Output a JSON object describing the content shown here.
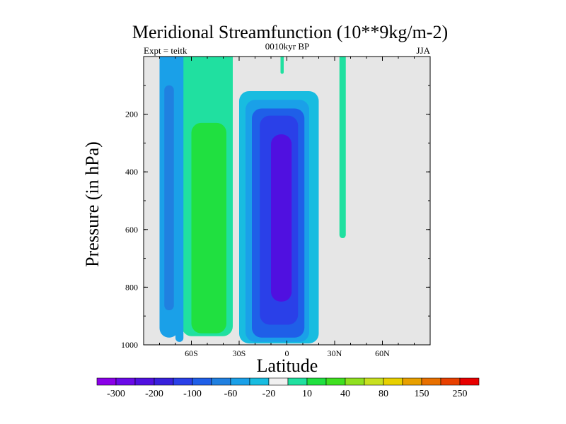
{
  "chart_data": {
    "type": "contour",
    "title": "Meridional Streamfunction (10**9kg/m-2)",
    "left_string": "Expt = teitk",
    "center_string": "0010kyr BP",
    "right_string": "JJA",
    "xlabel": "Latitude",
    "ylabel": "Pressure (in hPa)",
    "xlim": [
      -90,
      90
    ],
    "ylim": [
      1000,
      0
    ],
    "x_ticks": [
      {
        "value": -60,
        "label": "60S"
      },
      {
        "value": -30,
        "label": "30S"
      },
      {
        "value": 0,
        "label": "0"
      },
      {
        "value": 30,
        "label": "30N"
      },
      {
        "value": 60,
        "label": "60N"
      }
    ],
    "y_ticks": [
      {
        "value": 200,
        "label": "200"
      },
      {
        "value": 400,
        "label": "400"
      },
      {
        "value": 600,
        "label": "600"
      },
      {
        "value": 800,
        "label": "800"
      },
      {
        "value": 1000,
        "label": "1000"
      }
    ],
    "missing_color": "#e6e6e6",
    "colorbar": {
      "colors": [
        "#8a00e8",
        "#6a0ae8",
        "#5010e0",
        "#3820dc",
        "#2a40e8",
        "#1f5fe8",
        "#2080e0",
        "#1aa0e8",
        "#18bce0",
        "#f0f0f0",
        "#20e0a0",
        "#20e040",
        "#40e020",
        "#90e020",
        "#c8e020",
        "#e8d000",
        "#e8a000",
        "#e87000",
        "#e84000",
        "#e80000"
      ],
      "labels": [
        "-300",
        "-200",
        "-100",
        "-60",
        "-20",
        "10",
        "40",
        "80",
        "150",
        "250"
      ]
    },
    "regions": [
      {
        "name": "southern-polar-column",
        "level": -20,
        "color": "#1aa0e8",
        "lat": [
          -80,
          -68
        ],
        "p": [
          0,
          975
        ]
      },
      {
        "name": "southern-polar-core",
        "level": -60,
        "color": "#2080e0",
        "lat": [
          -77,
          -71
        ],
        "p": [
          100,
          880
        ]
      },
      {
        "name": "midlat-positive-outer",
        "level": 10,
        "color": "#20e0a0",
        "lat": [
          -66,
          -34
        ],
        "p": [
          0,
          970
        ]
      },
      {
        "name": "midlat-positive-core",
        "level": 40,
        "color": "#20e040",
        "lat": [
          -60,
          -38
        ],
        "p": [
          230,
          960
        ]
      },
      {
        "name": "southern-subpolar-strip",
        "level": -20,
        "color": "#1aa0e8",
        "lat": [
          -70,
          -65
        ],
        "p": [
          0,
          990
        ]
      },
      {
        "name": "hadley-cell-outer",
        "level": -20,
        "color": "#18bce0",
        "lat": [
          -30,
          20
        ],
        "p": [
          120,
          995
        ]
      },
      {
        "name": "hadley-cell-ring-1",
        "level": -60,
        "color": "#1aa0e8",
        "lat": [
          -26,
          14
        ],
        "p": [
          150,
          990
        ]
      },
      {
        "name": "hadley-cell-ring-2",
        "level": -100,
        "color": "#1f5fe8",
        "lat": [
          -22,
          11
        ],
        "p": [
          180,
          975
        ]
      },
      {
        "name": "hadley-cell-ring-3",
        "level": -200,
        "color": "#2a40e8",
        "lat": [
          -17,
          7
        ],
        "p": [
          205,
          930
        ]
      },
      {
        "name": "hadley-cell-core",
        "level": -300,
        "color": "#5010e0",
        "lat": [
          -10,
          3
        ],
        "p": [
          270,
          850
        ]
      },
      {
        "name": "northern-band",
        "level": 10,
        "color": "#20e0a0",
        "lat": [
          33,
          37
        ],
        "p": [
          0,
          630
        ]
      },
      {
        "name": "tropical-upper-band",
        "level": 10,
        "color": "#20e0a0",
        "lat": [
          -4,
          -2
        ],
        "p": [
          0,
          60
        ]
      }
    ]
  }
}
